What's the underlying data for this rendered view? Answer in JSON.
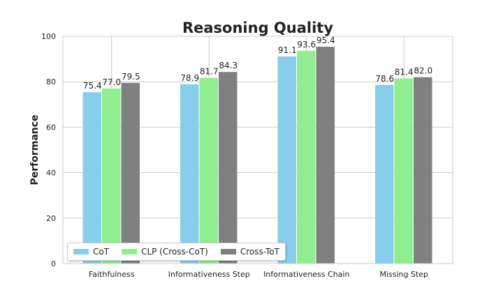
{
  "chart_data": {
    "type": "bar",
    "title": "Reasoning Quality",
    "xlabel": "",
    "ylabel": "Performance",
    "ylim": [
      0,
      100
    ],
    "yticks": [
      "0",
      "20",
      "40",
      "60",
      "80",
      "100"
    ],
    "categories": [
      "Faithfulness",
      "Informativeness Step",
      "Informativeness Chain",
      "Missing Step"
    ],
    "series": [
      {
        "name": "CoT",
        "color": "#87ceeb",
        "values": [
          75.4,
          78.9,
          91.1,
          78.6
        ],
        "labels": [
          "75.4",
          "78.9",
          "91.1",
          "78.6"
        ]
      },
      {
        "name": "CLP (Cross-CoT)",
        "color": "#90ee90",
        "values": [
          77.0,
          81.7,
          93.6,
          81.4
        ],
        "labels": [
          "77.0",
          "81.7",
          "93.6",
          "81.4"
        ]
      },
      {
        "name": "Cross-ToT",
        "color": "#808080",
        "values": [
          79.5,
          84.3,
          95.4,
          82.0
        ],
        "labels": [
          "79.5",
          "84.3",
          "95.4",
          "82.0"
        ]
      }
    ],
    "grid": true,
    "legend_position": "lower-left"
  }
}
